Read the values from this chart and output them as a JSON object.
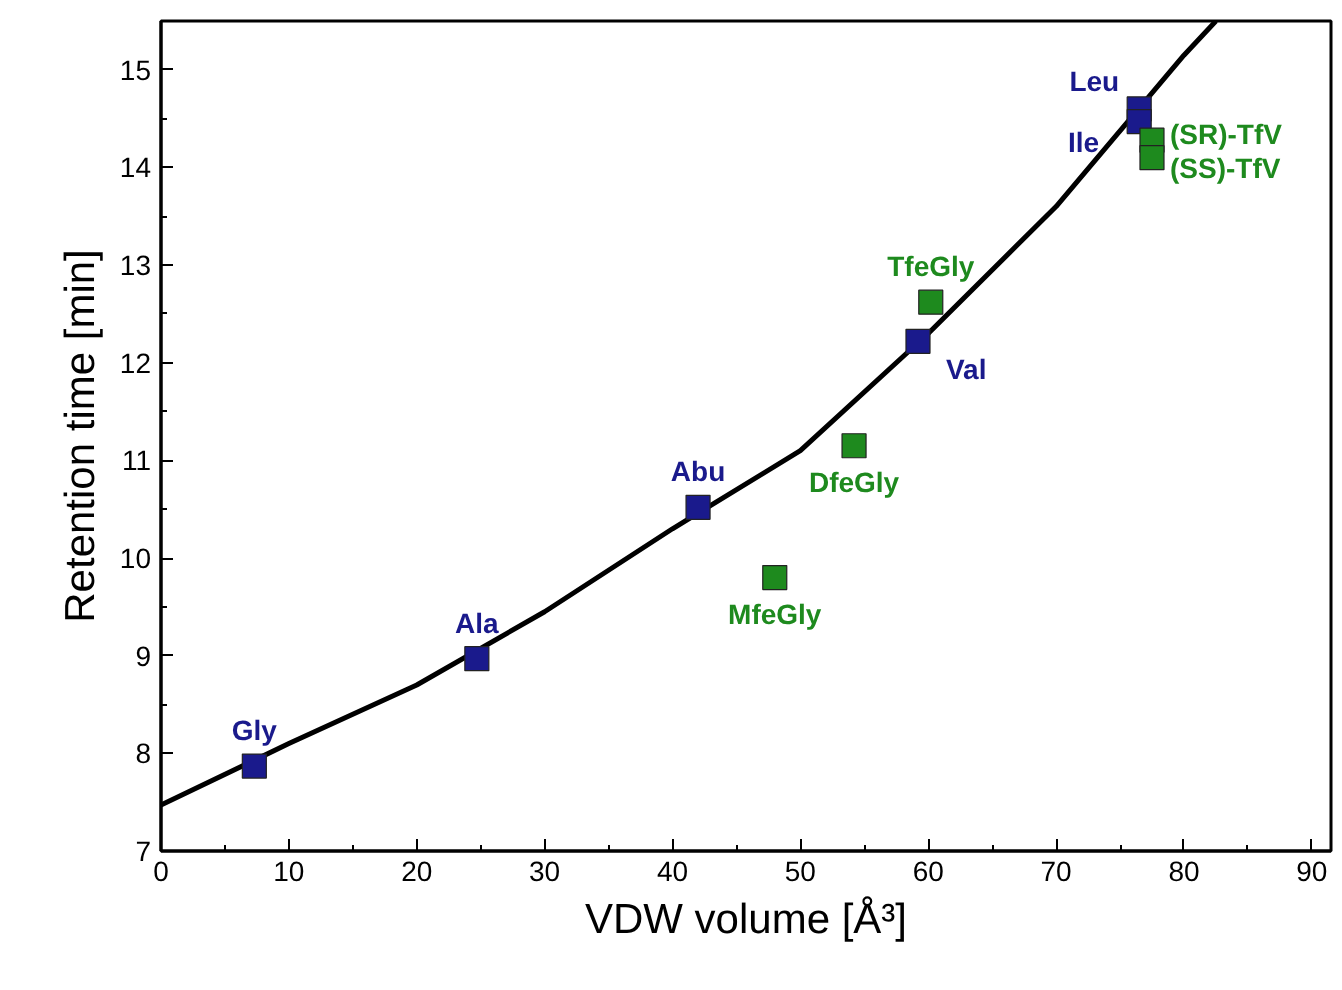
{
  "chart_data": {
    "type": "scatter",
    "xlabel": "VDW volume [Å³]",
    "ylabel": "Retention time [min]",
    "xlim": [
      0,
      91.5
    ],
    "ylim": [
      7,
      15.5
    ],
    "xticks": [
      0,
      10,
      20,
      30,
      40,
      50,
      60,
      70,
      80,
      90
    ],
    "yticks": [
      7,
      8,
      9,
      10,
      11,
      12,
      13,
      14,
      15
    ],
    "grid": false,
    "marker": "square",
    "series": [
      {
        "type": "line",
        "color": "#000000",
        "marker": "none",
        "x": [
          0,
          10,
          20,
          30,
          40,
          50,
          60,
          70,
          80,
          82.5
        ],
        "values": [
          7.47,
          8.1,
          8.7,
          9.45,
          10.3,
          11.1,
          12.3,
          13.6,
          15.15,
          15.5
        ]
      },
      {
        "color": "#1a1a8c",
        "x": [
          7.3,
          24.7,
          42,
          59.2,
          76.5,
          76.5
        ],
        "values": [
          7.87,
          8.97,
          10.52,
          12.22,
          14.6,
          14.47
        ],
        "value_labels": [
          "Gly",
          "Ala",
          "Abu",
          "Val",
          "Leu",
          "Ile"
        ]
      },
      {
        "color": "#1e8a1e",
        "x": [
          48,
          54.2,
          60.2,
          77.5,
          77.5
        ],
        "values": [
          9.8,
          11.15,
          12.62,
          14.28,
          14.1
        ],
        "value_labels": [
          "MfeGly",
          "DfeGly",
          "TfeGly",
          "(SR)-TfV",
          "(SS)-TfV"
        ]
      }
    ]
  }
}
